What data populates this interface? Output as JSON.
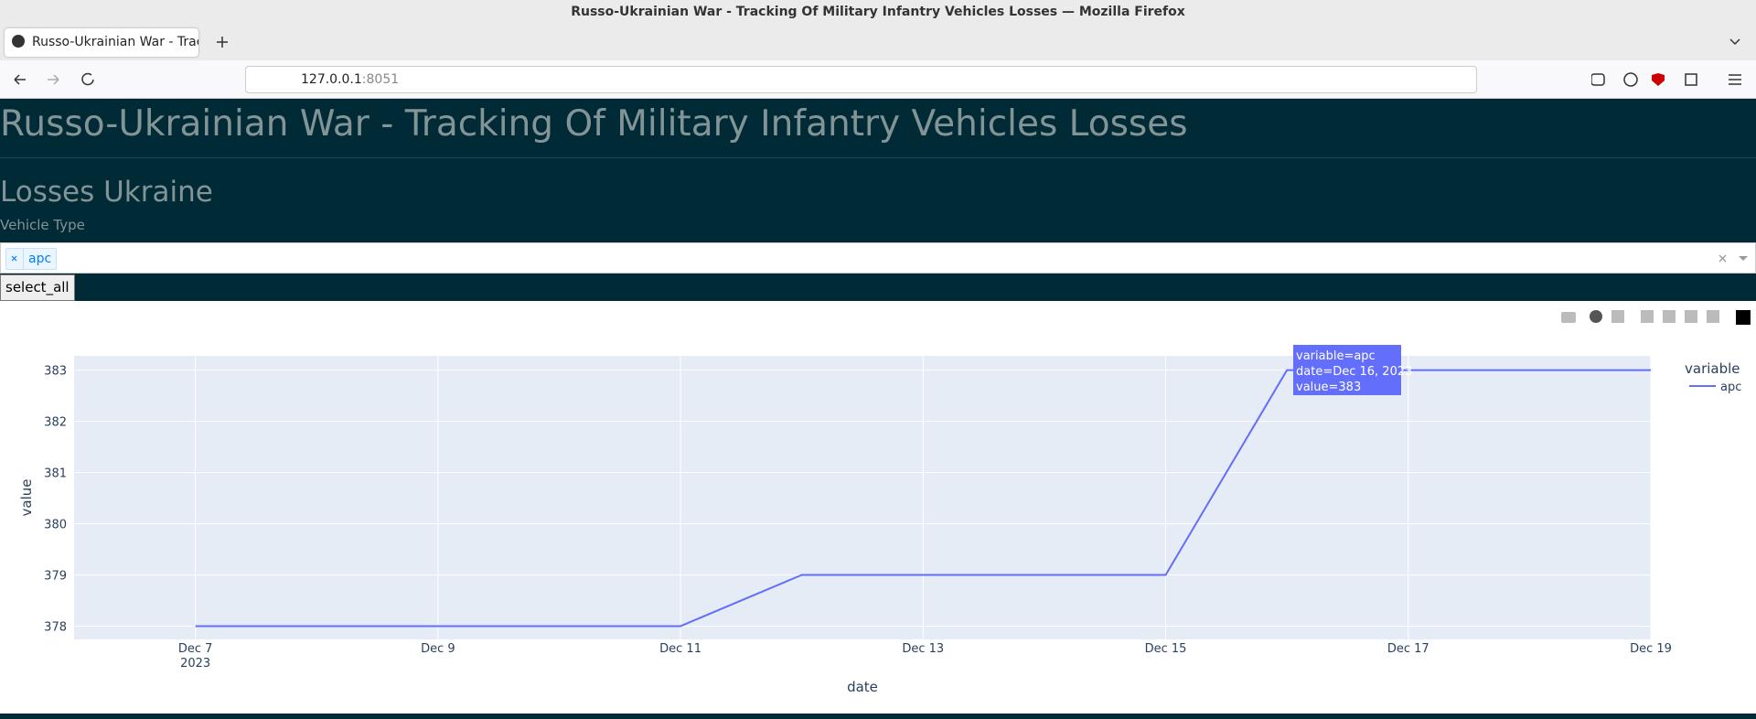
{
  "browser": {
    "window_title": "Russo-Ukrainian War - Tracking Of Military Infantry Vehicles Losses — Mozilla Firefox",
    "tab_title": "Russo-Ukrainian War - Track",
    "url_host": "127.0.0.1",
    "url_port": ":8051"
  },
  "app": {
    "title": "Russo-Ukrainian War - Tracking Of Military Infantry Vehicles Losses",
    "subtitle": "Losses Ukraine",
    "dropdown_label": "Vehicle Type",
    "selected": [
      "apc"
    ],
    "button": "select_all"
  },
  "chart_data": {
    "type": "line",
    "x_label": "date",
    "y_label": "value",
    "legend_title": "variable",
    "x": [
      "2023-12-07",
      "2023-12-08",
      "2023-12-09",
      "2023-12-10",
      "2023-12-11",
      "2023-12-12",
      "2023-12-13",
      "2023-12-14",
      "2023-12-15",
      "2023-12-16",
      "2023-12-17",
      "2023-12-18",
      "2023-12-19"
    ],
    "series": [
      {
        "name": "apc",
        "color": "#636efa",
        "values": [
          378,
          378,
          378,
          378,
          378,
          379,
          379,
          379,
          379,
          383,
          383,
          383,
          383
        ]
      }
    ],
    "xlim": [
      "2023-12-06",
      "2023-12-19"
    ],
    "xticks": [
      {
        "value": "2023-12-07",
        "label": "Dec 7"
      },
      {
        "value": "2023-12-09",
        "label": "Dec 9"
      },
      {
        "value": "2023-12-11",
        "label": "Dec 11"
      },
      {
        "value": "2023-12-13",
        "label": "Dec 13"
      },
      {
        "value": "2023-12-15",
        "label": "Dec 15"
      },
      {
        "value": "2023-12-17",
        "label": "Dec 17"
      },
      {
        "value": "2023-12-19",
        "label": "Dec 19"
      }
    ],
    "x_year_label": "2023",
    "ylim": [
      377.74,
      383.28
    ],
    "yticks": [
      378,
      379,
      380,
      381,
      382,
      383
    ],
    "grid": true,
    "hover": {
      "lines": [
        "variable=apc",
        "date=Dec 16, 2023",
        "value=383"
      ]
    }
  }
}
